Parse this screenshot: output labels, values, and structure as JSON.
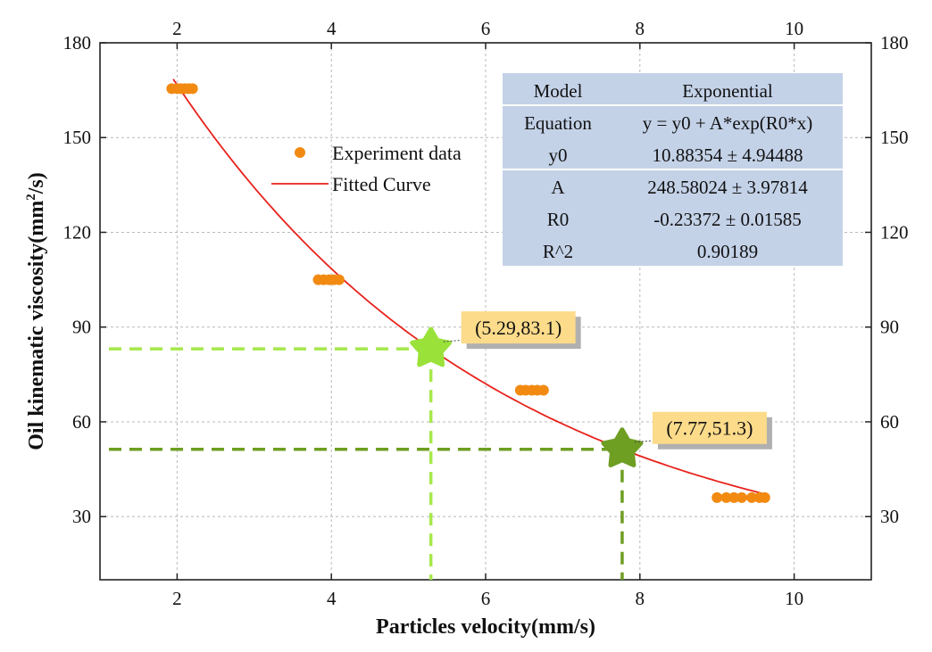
{
  "chart_data": {
    "type": "scatter",
    "xlabel": "Particles velocity(mm/s)",
    "ylabel_main": "Oil kinematic viscosity(mm",
    "ylabel_sup": "2",
    "ylabel_tail": "/s)",
    "xlim": [
      1,
      11
    ],
    "ylim": [
      10,
      180
    ],
    "x_ticks": [
      "2",
      "4",
      "6",
      "8",
      "10"
    ],
    "y_ticks": [
      "30",
      "60",
      "90",
      "120",
      "150",
      "180"
    ],
    "x_tick_values": [
      2,
      4,
      6,
      8,
      10
    ],
    "y_tick_values": [
      30,
      60,
      90,
      120,
      150,
      180
    ],
    "grid": true,
    "legend": {
      "position": "top-center",
      "entries": [
        "Experiment data",
        "Fitted Curve"
      ]
    },
    "series": [
      {
        "name": "Experiment data",
        "color": "#f28a12",
        "points": [
          [
            1.93,
            165.5
          ],
          [
            2.0,
            165.5
          ],
          [
            2.05,
            165.5
          ],
          [
            2.1,
            165.5
          ],
          [
            2.15,
            165.5
          ],
          [
            2.2,
            165.5
          ],
          [
            3.83,
            105
          ],
          [
            3.9,
            105
          ],
          [
            3.97,
            105
          ],
          [
            4.03,
            105
          ],
          [
            4.1,
            105
          ],
          [
            6.45,
            70
          ],
          [
            6.52,
            70
          ],
          [
            6.6,
            70
          ],
          [
            6.67,
            70
          ],
          [
            6.75,
            70
          ],
          [
            9.0,
            36
          ],
          [
            9.12,
            36
          ],
          [
            9.22,
            36
          ],
          [
            9.32,
            36
          ],
          [
            9.45,
            36
          ],
          [
            9.55,
            36
          ],
          [
            9.62,
            36
          ]
        ]
      },
      {
        "name": "Fitted Curve",
        "color": "#e8221c",
        "model": "exponential",
        "y0": 10.88354,
        "A": 248.58024,
        "R0": -0.23372,
        "x_range": [
          1.95,
          9.65
        ]
      }
    ],
    "highlights": [
      {
        "x": 5.29,
        "y": 83.1,
        "label": "(5.29,83.1)",
        "color": "#9ae23a",
        "dash_color": "#a6e84a"
      },
      {
        "x": 7.77,
        "y": 51.3,
        "label": "(7.77,51.3)",
        "color": "#6e9e22",
        "dash_color": "#6e9e22"
      }
    ],
    "fit_table": {
      "rows": [
        [
          "Model",
          "Exponential"
        ],
        [
          "Equation",
          "y = y0 + A*exp(R0*x)"
        ],
        [
          "y0",
          "10.88354 ± 4.94488"
        ],
        [
          "A",
          "248.58024 ± 3.97814"
        ],
        [
          "R0",
          "-0.23372 ± 0.01585"
        ],
        [
          "R^2",
          "0.90189"
        ]
      ]
    }
  }
}
